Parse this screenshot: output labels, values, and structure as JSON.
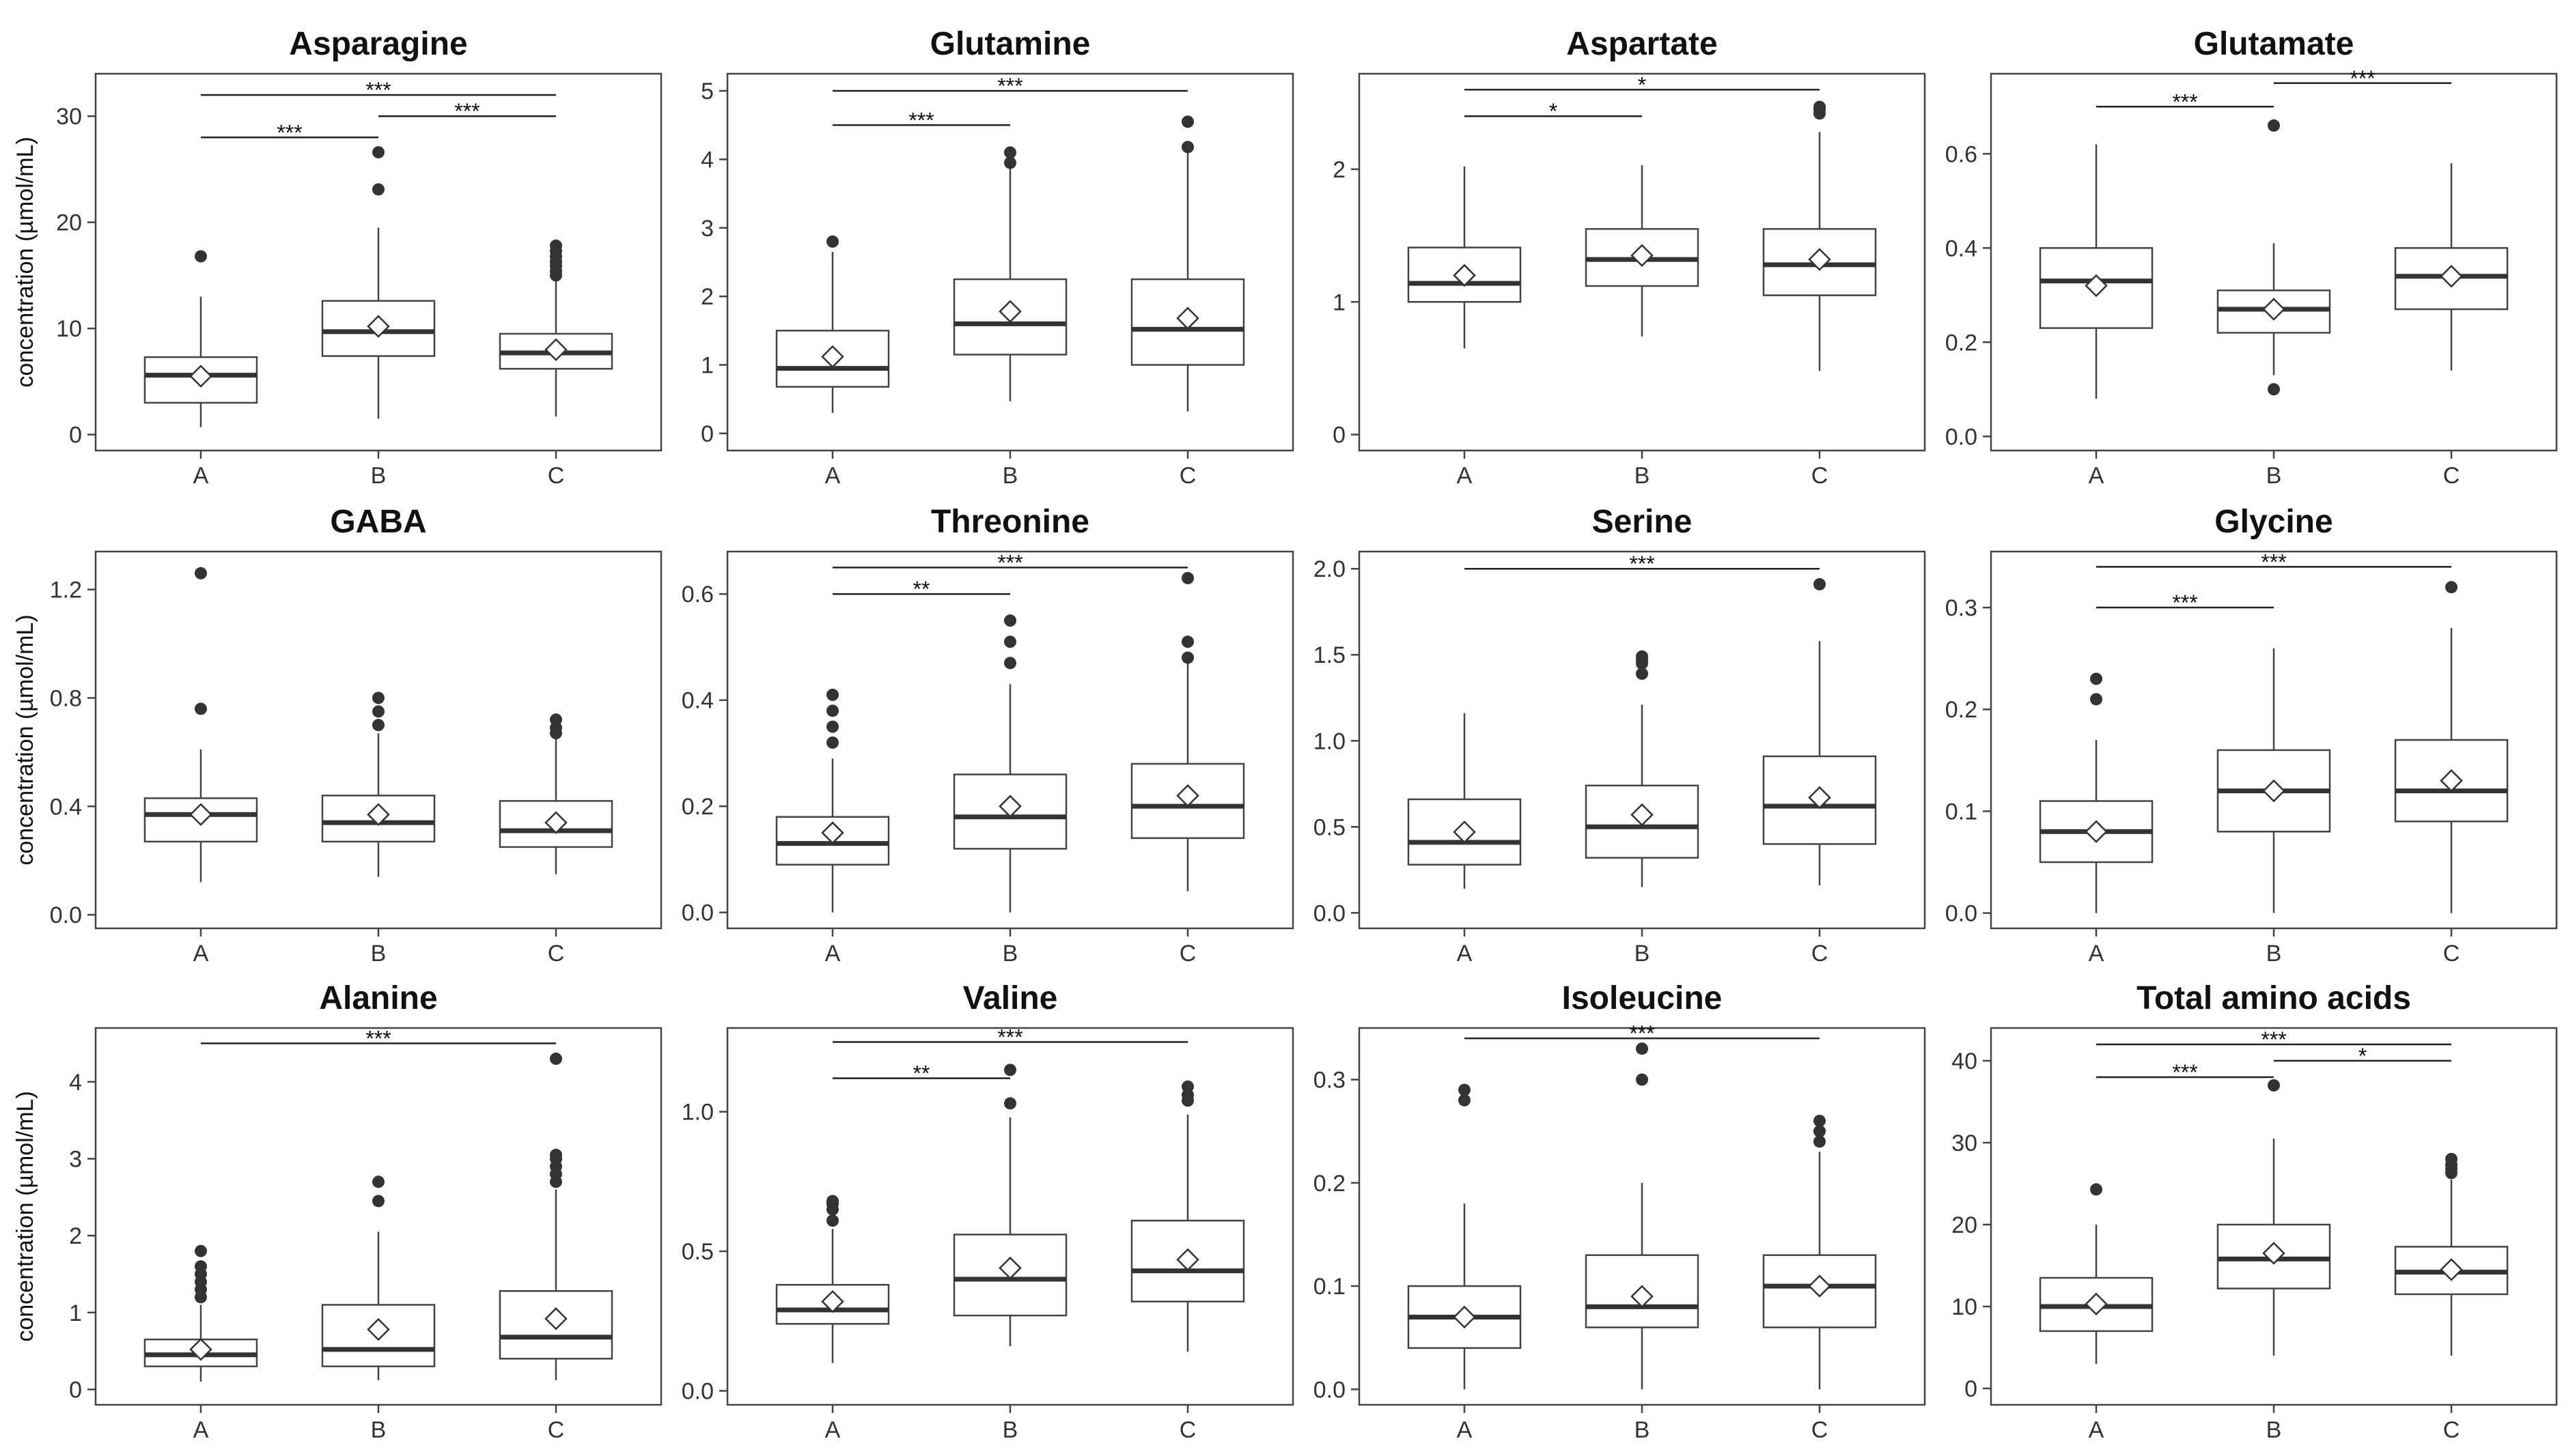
{
  "chart_data": [
    {
      "type": "boxplot",
      "title": "Asparagine",
      "ylabel": "concentration (µmol/mL)",
      "categories": [
        "A",
        "B",
        "C"
      ],
      "ylim": [
        -1.5,
        34
      ],
      "yticks": [
        0,
        10,
        20,
        30
      ],
      "boxes": [
        {
          "lower_whisker": 0.7,
          "q1": 3.0,
          "median": 5.6,
          "q3": 7.3,
          "upper_whisker": 13.0,
          "mean": 5.5,
          "outliers": [
            16.8
          ]
        },
        {
          "lower_whisker": 1.5,
          "q1": 7.4,
          "median": 9.7,
          "q3": 12.6,
          "upper_whisker": 19.5,
          "mean": 10.2,
          "outliers": [
            23.1,
            26.6
          ]
        },
        {
          "lower_whisker": 1.7,
          "q1": 6.2,
          "median": 7.7,
          "q3": 9.5,
          "upper_whisker": 14.6,
          "mean": 8.0,
          "outliers": [
            15.0,
            15.4,
            15.9,
            16.3,
            16.8,
            17.3,
            17.8
          ]
        }
      ],
      "significance": [
        {
          "from": "A",
          "to": "C",
          "label": "***",
          "y": 32.0
        },
        {
          "from": "A",
          "to": "B",
          "label": "***",
          "y": 28.0
        },
        {
          "from": "B",
          "to": "C",
          "label": "***",
          "y": 30.0
        }
      ]
    },
    {
      "type": "boxplot",
      "title": "Glutamine",
      "ylabel": "",
      "categories": [
        "A",
        "B",
        "C"
      ],
      "ylim": [
        -0.25,
        5.25
      ],
      "yticks": [
        0,
        1,
        2,
        3,
        4,
        5
      ],
      "boxes": [
        {
          "lower_whisker": 0.3,
          "q1": 0.68,
          "median": 0.95,
          "q3": 1.5,
          "upper_whisker": 2.65,
          "mean": 1.12,
          "outliers": [
            2.8
          ]
        },
        {
          "lower_whisker": 0.47,
          "q1": 1.15,
          "median": 1.6,
          "q3": 2.25,
          "upper_whisker": 3.9,
          "mean": 1.78,
          "outliers": [
            3.95,
            4.1
          ]
        },
        {
          "lower_whisker": 0.32,
          "q1": 1.0,
          "median": 1.52,
          "q3": 2.25,
          "upper_whisker": 4.15,
          "mean": 1.68,
          "outliers": [
            4.18,
            4.55
          ]
        }
      ],
      "significance": [
        {
          "from": "A",
          "to": "C",
          "label": "***",
          "y": 5.0
        },
        {
          "from": "A",
          "to": "B",
          "label": "***",
          "y": 4.5
        }
      ]
    },
    {
      "type": "boxplot",
      "title": "Aspartate",
      "ylabel": "",
      "categories": [
        "A",
        "B",
        "C"
      ],
      "ylim": [
        -0.12,
        2.72
      ],
      "yticks": [
        0,
        1,
        2
      ],
      "boxes": [
        {
          "lower_whisker": 0.65,
          "q1": 1.0,
          "median": 1.14,
          "q3": 1.41,
          "upper_whisker": 2.02,
          "mean": 1.2,
          "outliers": []
        },
        {
          "lower_whisker": 0.74,
          "q1": 1.12,
          "median": 1.32,
          "q3": 1.55,
          "upper_whisker": 2.03,
          "mean": 1.35,
          "outliers": []
        },
        {
          "lower_whisker": 0.48,
          "q1": 1.05,
          "median": 1.28,
          "q3": 1.55,
          "upper_whisker": 2.28,
          "mean": 1.32,
          "outliers": [
            2.42,
            2.45,
            2.47
          ]
        }
      ],
      "significance": [
        {
          "from": "A",
          "to": "C",
          "label": "*",
          "y": 2.6
        },
        {
          "from": "A",
          "to": "B",
          "label": "*",
          "y": 2.4
        }
      ]
    },
    {
      "type": "boxplot",
      "title": "Glutamate",
      "ylabel": "",
      "categories": [
        "A",
        "B",
        "C"
      ],
      "ylim": [
        -0.03,
        0.77
      ],
      "yticks": [
        0.0,
        0.2,
        0.4,
        0.6
      ],
      "tick_decimals": 1,
      "boxes": [
        {
          "lower_whisker": 0.08,
          "q1": 0.23,
          "median": 0.33,
          "q3": 0.4,
          "upper_whisker": 0.62,
          "mean": 0.32,
          "outliers": []
        },
        {
          "lower_whisker": 0.13,
          "q1": 0.22,
          "median": 0.27,
          "q3": 0.31,
          "upper_whisker": 0.41,
          "mean": 0.27,
          "outliers": [
            0.1,
            0.66
          ]
        },
        {
          "lower_whisker": 0.14,
          "q1": 0.27,
          "median": 0.34,
          "q3": 0.4,
          "upper_whisker": 0.58,
          "mean": 0.34,
          "outliers": []
        }
      ],
      "significance": [
        {
          "from": "A",
          "to": "B",
          "label": "***",
          "y": 0.7
        },
        {
          "from": "B",
          "to": "C",
          "label": "***",
          "y": 0.75
        }
      ]
    },
    {
      "type": "boxplot",
      "title": "GABA",
      "ylabel": "concentration (µmol/mL)",
      "categories": [
        "A",
        "B",
        "C"
      ],
      "ylim": [
        -0.05,
        1.34
      ],
      "yticks": [
        0.0,
        0.4,
        0.8,
        1.2
      ],
      "tick_decimals": 1,
      "boxes": [
        {
          "lower_whisker": 0.12,
          "q1": 0.27,
          "median": 0.37,
          "q3": 0.43,
          "upper_whisker": 0.61,
          "mean": 0.37,
          "outliers": [
            0.76,
            1.26
          ]
        },
        {
          "lower_whisker": 0.14,
          "q1": 0.27,
          "median": 0.34,
          "q3": 0.44,
          "upper_whisker": 0.67,
          "mean": 0.37,
          "outliers": [
            0.7,
            0.75,
            0.8
          ]
        },
        {
          "lower_whisker": 0.15,
          "q1": 0.25,
          "median": 0.31,
          "q3": 0.42,
          "upper_whisker": 0.65,
          "mean": 0.34,
          "outliers": [
            0.67,
            0.69,
            0.72
          ]
        }
      ],
      "significance": []
    },
    {
      "type": "boxplot",
      "title": "Threonine",
      "ylabel": "",
      "categories": [
        "A",
        "B",
        "C"
      ],
      "ylim": [
        -0.03,
        0.68
      ],
      "yticks": [
        0.0,
        0.2,
        0.4,
        0.6
      ],
      "tick_decimals": 1,
      "boxes": [
        {
          "lower_whisker": 0.0,
          "q1": 0.09,
          "median": 0.13,
          "q3": 0.18,
          "upper_whisker": 0.29,
          "mean": 0.15,
          "outliers": [
            0.32,
            0.35,
            0.38,
            0.41
          ]
        },
        {
          "lower_whisker": 0.0,
          "q1": 0.12,
          "median": 0.18,
          "q3": 0.26,
          "upper_whisker": 0.43,
          "mean": 0.2,
          "outliers": [
            0.47,
            0.51,
            0.55
          ]
        },
        {
          "lower_whisker": 0.04,
          "q1": 0.14,
          "median": 0.2,
          "q3": 0.28,
          "upper_whisker": 0.47,
          "mean": 0.22,
          "outliers": [
            0.48,
            0.51,
            0.63
          ]
        }
      ],
      "significance": [
        {
          "from": "A",
          "to": "C",
          "label": "***",
          "y": 0.65
        },
        {
          "from": "A",
          "to": "B",
          "label": "**",
          "y": 0.6
        }
      ]
    },
    {
      "type": "boxplot",
      "title": "Serine",
      "ylabel": "",
      "categories": [
        "A",
        "B",
        "C"
      ],
      "ylim": [
        -0.09,
        2.1
      ],
      "yticks": [
        0.0,
        0.5,
        1.0,
        1.5,
        2.0
      ],
      "tick_decimals": 1,
      "boxes": [
        {
          "lower_whisker": 0.14,
          "q1": 0.28,
          "median": 0.41,
          "q3": 0.66,
          "upper_whisker": 1.16,
          "mean": 0.47,
          "outliers": []
        },
        {
          "lower_whisker": 0.15,
          "q1": 0.32,
          "median": 0.5,
          "q3": 0.74,
          "upper_whisker": 1.21,
          "mean": 0.57,
          "outliers": [
            1.39,
            1.45,
            1.47,
            1.49
          ]
        },
        {
          "lower_whisker": 0.16,
          "q1": 0.4,
          "median": 0.62,
          "q3": 0.91,
          "upper_whisker": 1.58,
          "mean": 0.67,
          "outliers": [
            1.91
          ]
        }
      ],
      "significance": [
        {
          "from": "A",
          "to": "C",
          "label": "***",
          "y": 2.0
        }
      ]
    },
    {
      "type": "boxplot",
      "title": "Glycine",
      "ylabel": "",
      "categories": [
        "A",
        "B",
        "C"
      ],
      "ylim": [
        -0.015,
        0.355
      ],
      "yticks": [
        0.0,
        0.1,
        0.2,
        0.3
      ],
      "tick_decimals": 1,
      "boxes": [
        {
          "lower_whisker": 0.0,
          "q1": 0.05,
          "median": 0.08,
          "q3": 0.11,
          "upper_whisker": 0.17,
          "mean": 0.08,
          "outliers": [
            0.21,
            0.23
          ]
        },
        {
          "lower_whisker": 0.0,
          "q1": 0.08,
          "median": 0.12,
          "q3": 0.16,
          "upper_whisker": 0.26,
          "mean": 0.12,
          "outliers": []
        },
        {
          "lower_whisker": 0.0,
          "q1": 0.09,
          "median": 0.12,
          "q3": 0.17,
          "upper_whisker": 0.28,
          "mean": 0.13,
          "outliers": [
            0.32
          ]
        }
      ],
      "significance": [
        {
          "from": "A",
          "to": "C",
          "label": "***",
          "y": 0.34
        },
        {
          "from": "A",
          "to": "B",
          "label": "***",
          "y": 0.3
        }
      ]
    },
    {
      "type": "boxplot",
      "title": "Alanine",
      "ylabel": "concentration (µmol/mL)",
      "categories": [
        "A",
        "B",
        "C"
      ],
      "ylim": [
        -0.2,
        4.7
      ],
      "yticks": [
        0,
        1,
        2,
        3,
        4
      ],
      "boxes": [
        {
          "lower_whisker": 0.1,
          "q1": 0.3,
          "median": 0.45,
          "q3": 0.65,
          "upper_whisker": 1.1,
          "mean": 0.52,
          "outliers": [
            1.2,
            1.3,
            1.4,
            1.5,
            1.6,
            1.8
          ]
        },
        {
          "lower_whisker": 0.12,
          "q1": 0.3,
          "median": 0.52,
          "q3": 1.1,
          "upper_whisker": 2.05,
          "mean": 0.78,
          "outliers": [
            2.45,
            2.7
          ]
        },
        {
          "lower_whisker": 0.12,
          "q1": 0.4,
          "median": 0.68,
          "q3": 1.28,
          "upper_whisker": 2.6,
          "mean": 0.92,
          "outliers": [
            2.7,
            2.8,
            2.9,
            3.0,
            3.05,
            4.3
          ]
        }
      ],
      "significance": [
        {
          "from": "A",
          "to": "C",
          "label": "***",
          "y": 4.5
        }
      ]
    },
    {
      "type": "boxplot",
      "title": "Valine",
      "ylabel": "",
      "categories": [
        "A",
        "B",
        "C"
      ],
      "ylim": [
        -0.05,
        1.3
      ],
      "yticks": [
        0.0,
        0.5,
        1.0
      ],
      "tick_decimals": 1,
      "boxes": [
        {
          "lower_whisker": 0.1,
          "q1": 0.24,
          "median": 0.29,
          "q3": 0.38,
          "upper_whisker": 0.58,
          "mean": 0.32,
          "outliers": [
            0.61,
            0.65,
            0.67,
            0.68
          ]
        },
        {
          "lower_whisker": 0.16,
          "q1": 0.27,
          "median": 0.4,
          "q3": 0.56,
          "upper_whisker": 0.98,
          "mean": 0.44,
          "outliers": [
            1.03,
            1.15
          ]
        },
        {
          "lower_whisker": 0.14,
          "q1": 0.32,
          "median": 0.43,
          "q3": 0.61,
          "upper_whisker": 0.99,
          "mean": 0.47,
          "outliers": [
            1.04,
            1.06,
            1.09
          ]
        }
      ],
      "significance": [
        {
          "from": "A",
          "to": "C",
          "label": "***",
          "y": 1.25
        },
        {
          "from": "A",
          "to": "B",
          "label": "**",
          "y": 1.12
        }
      ]
    },
    {
      "type": "boxplot",
      "title": "Isoleucine",
      "ylabel": "",
      "categories": [
        "A",
        "B",
        "C"
      ],
      "ylim": [
        -0.015,
        0.35
      ],
      "yticks": [
        0.0,
        0.1,
        0.2,
        0.3
      ],
      "tick_decimals": 1,
      "boxes": [
        {
          "lower_whisker": 0.0,
          "q1": 0.04,
          "median": 0.07,
          "q3": 0.1,
          "upper_whisker": 0.18,
          "mean": 0.07,
          "outliers": [
            0.28,
            0.29
          ]
        },
        {
          "lower_whisker": 0.0,
          "q1": 0.06,
          "median": 0.08,
          "q3": 0.13,
          "upper_whisker": 0.2,
          "mean": 0.09,
          "outliers": [
            0.3,
            0.33
          ]
        },
        {
          "lower_whisker": 0.0,
          "q1": 0.06,
          "median": 0.1,
          "q3": 0.13,
          "upper_whisker": 0.23,
          "mean": 0.1,
          "outliers": [
            0.24,
            0.25,
            0.26
          ]
        }
      ],
      "significance": [
        {
          "from": "A",
          "to": "C",
          "label": "***",
          "y": 0.34
        }
      ]
    },
    {
      "type": "boxplot",
      "title": "Total amino acids",
      "ylabel": "",
      "categories": [
        "A",
        "B",
        "C"
      ],
      "ylim": [
        -2,
        44
      ],
      "yticks": [
        0,
        10,
        20,
        30,
        40
      ],
      "boxes": [
        {
          "lower_whisker": 3,
          "q1": 7,
          "median": 10,
          "q3": 13.5,
          "upper_whisker": 20,
          "mean": 10.3,
          "outliers": [
            24.3
          ]
        },
        {
          "lower_whisker": 4,
          "q1": 12.2,
          "median": 15.8,
          "q3": 20,
          "upper_whisker": 30.5,
          "mean": 16.5,
          "outliers": [
            37
          ]
        },
        {
          "lower_whisker": 4,
          "q1": 11.5,
          "median": 14.2,
          "q3": 17.3,
          "upper_whisker": 25.5,
          "mean": 14.5,
          "outliers": [
            26.3,
            26.8,
            27.3,
            28
          ]
        }
      ],
      "significance": [
        {
          "from": "A",
          "to": "C",
          "label": "***",
          "y": 42
        },
        {
          "from": "A",
          "to": "B",
          "label": "***",
          "y": 38
        },
        {
          "from": "B",
          "to": "C",
          "label": "*",
          "y": 40
        }
      ]
    }
  ]
}
